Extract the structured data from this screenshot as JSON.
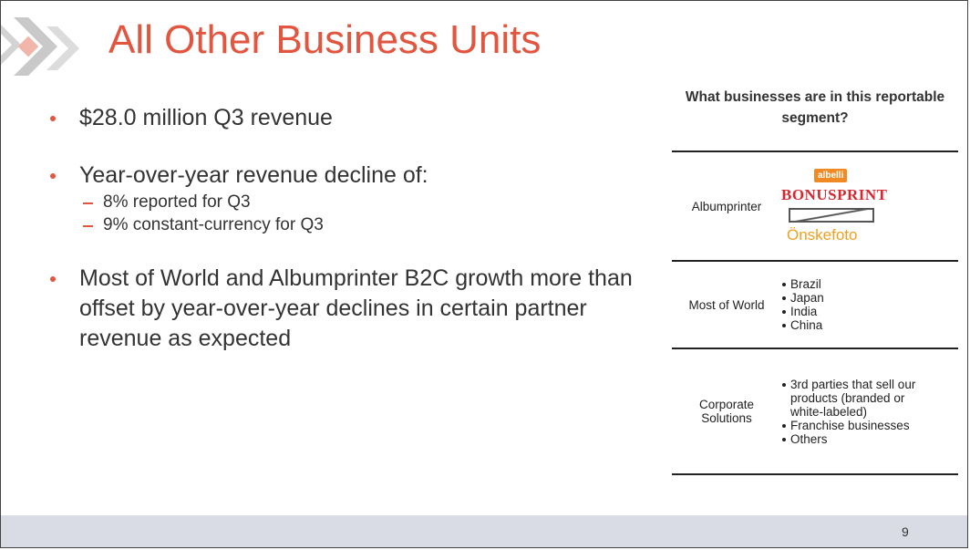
{
  "title": "All Other Business Units",
  "bullets": [
    {
      "text": "$28.0 million Q3 revenue"
    },
    {
      "text": "Year-over-year revenue decline of:",
      "sub": [
        "8% reported for Q3",
        "9% constant-currency for Q3"
      ]
    },
    {
      "text": "Most of World and Albumprinter B2C growth more than offset by year-over-year declines in certain partner revenue as expected"
    }
  ],
  "table": {
    "header": "What businesses are in this reportable segment?",
    "rows": [
      {
        "label": "Albumprinter",
        "brands": [
          "albelli",
          "BONUSPRINT",
          "Önskefoto"
        ]
      },
      {
        "label": "Most of World",
        "items": [
          "Brazil",
          "Japan",
          "India",
          "China"
        ]
      },
      {
        "label": "Corporate Solutions",
        "items": [
          "3rd parties that sell our products (branded or white-labeled)",
          "Franchise businesses",
          "Others"
        ]
      }
    ]
  },
  "page_number": "9"
}
